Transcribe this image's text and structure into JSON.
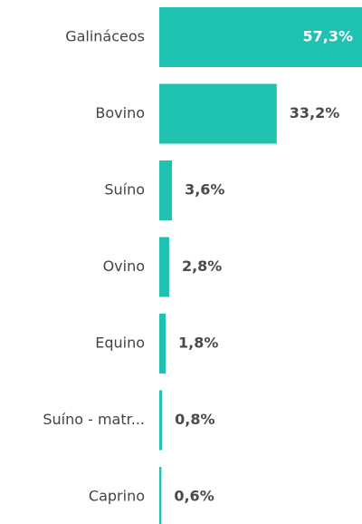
{
  "chart_data": {
    "type": "bar",
    "orientation": "horizontal",
    "categories": [
      "Galináceos",
      "Bovino",
      "Suíno",
      "Ovino",
      "Equino",
      "Suíno - matr...",
      "Caprino"
    ],
    "values": [
      57.3,
      33.2,
      3.6,
      2.8,
      1.8,
      0.8,
      0.6
    ],
    "value_labels": [
      "57,3%",
      "33,2%",
      "3,6%",
      "2,8%",
      "1,8%",
      "0,8%",
      "0,6%"
    ],
    "color": "#1fc1b1"
  }
}
